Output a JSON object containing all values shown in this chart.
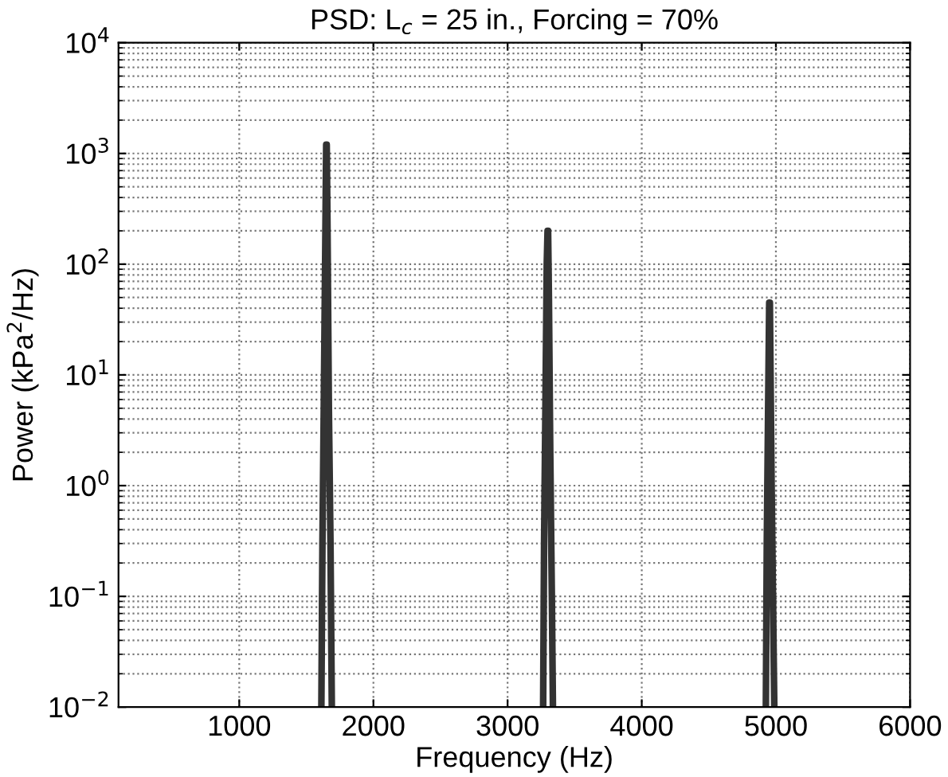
{
  "chart_data": {
    "type": "line",
    "title": "PSD: L$_{c}$ = 25 in., Forcing = 70%",
    "xlabel": "Frequency (Hz)",
    "ylabel": "Power (kPa$^{2}$/Hz)",
    "log": "y",
    "grid": true,
    "marker": "none",
    "line_style": "solid",
    "xlim": [
      100,
      6000
    ],
    "xticks": [
      1000,
      2000,
      3000,
      4000,
      5000,
      6000
    ],
    "ylim": [
      0.01,
      10000
    ],
    "yticks": [
      {
        "value": 0.01,
        "label": "10$^{−2}$"
      },
      {
        "value": 0.1,
        "label": "10$^{−1}$"
      },
      {
        "value": 1,
        "label": "10$^{0}$"
      },
      {
        "value": 10,
        "label": "10$^{1}$"
      },
      {
        "value": 100,
        "label": "10$^{2}$"
      },
      {
        "value": 1000,
        "label": "10$^{3}$"
      },
      {
        "value": 10000,
        "label": "10$^{4}$"
      }
    ],
    "series": [
      {
        "color": "#333333",
        "x": [
          1612,
          1620,
          1630,
          1640,
          1648,
          1652,
          1658,
          1668,
          1680,
          1690,
          1750,
          3265,
          3272,
          3282,
          3292,
          3298,
          3302,
          3308,
          3318,
          3330,
          3338,
          3400,
          4925,
          4932,
          4942,
          4950,
          4955,
          4960,
          4968,
          4978,
          4988
        ],
        "values": [
          0.01,
          0.3,
          5,
          100,
          1200,
          1200,
          200,
          5,
          0.3,
          0.01,
          null,
          0.01,
          0.3,
          5,
          100,
          200,
          200,
          50,
          2,
          0.1,
          0.01,
          null,
          0.01,
          0.3,
          5,
          45,
          45,
          10,
          1,
          0.1,
          0.01
        ]
      }
    ]
  }
}
